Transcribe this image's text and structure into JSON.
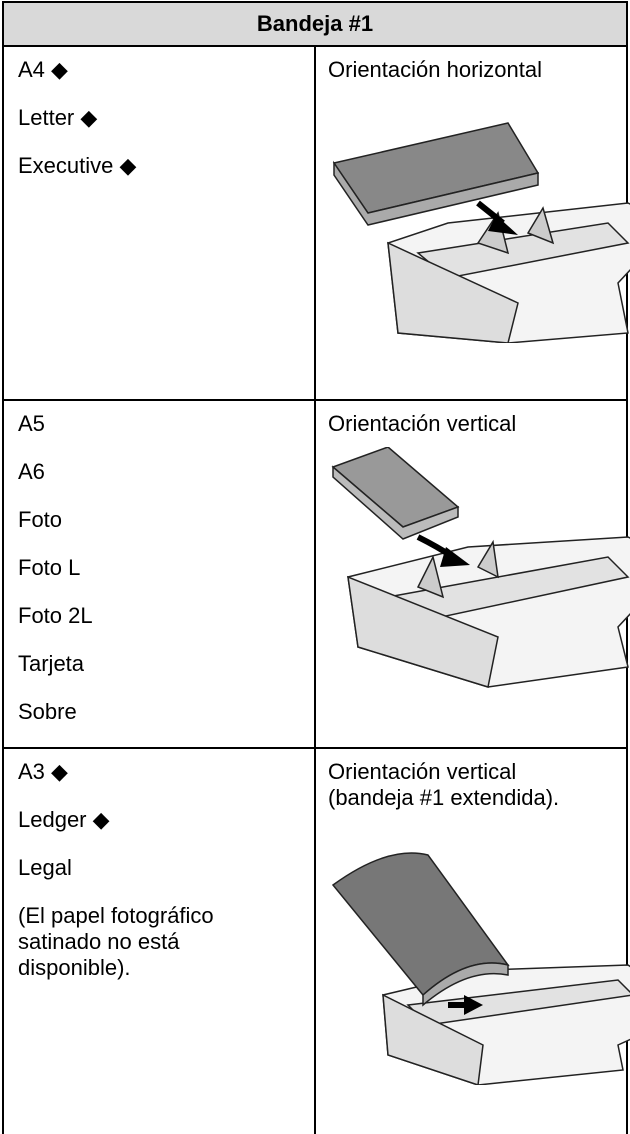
{
  "header": {
    "title": "Bandeja #1"
  },
  "rows": [
    {
      "sizes": [
        "A4 ◆",
        "Letter ◆",
        "Executive ◆"
      ],
      "orientation": [
        "Orientación horizontal"
      ]
    },
    {
      "sizes": [
        "A5",
        "A6",
        "Foto",
        "Foto L",
        "Foto 2L",
        "Tarjeta",
        "Sobre"
      ],
      "orientation": [
        "Orientación vertical"
      ]
    },
    {
      "sizes": [
        "A3 ◆",
        "Ledger ◆",
        "Legal",
        "(El papel fotográfico satinado no está disponible)."
      ],
      "orientation": [
        "Orientación vertical",
        "(bandeja #1 extendida)."
      ]
    }
  ]
}
